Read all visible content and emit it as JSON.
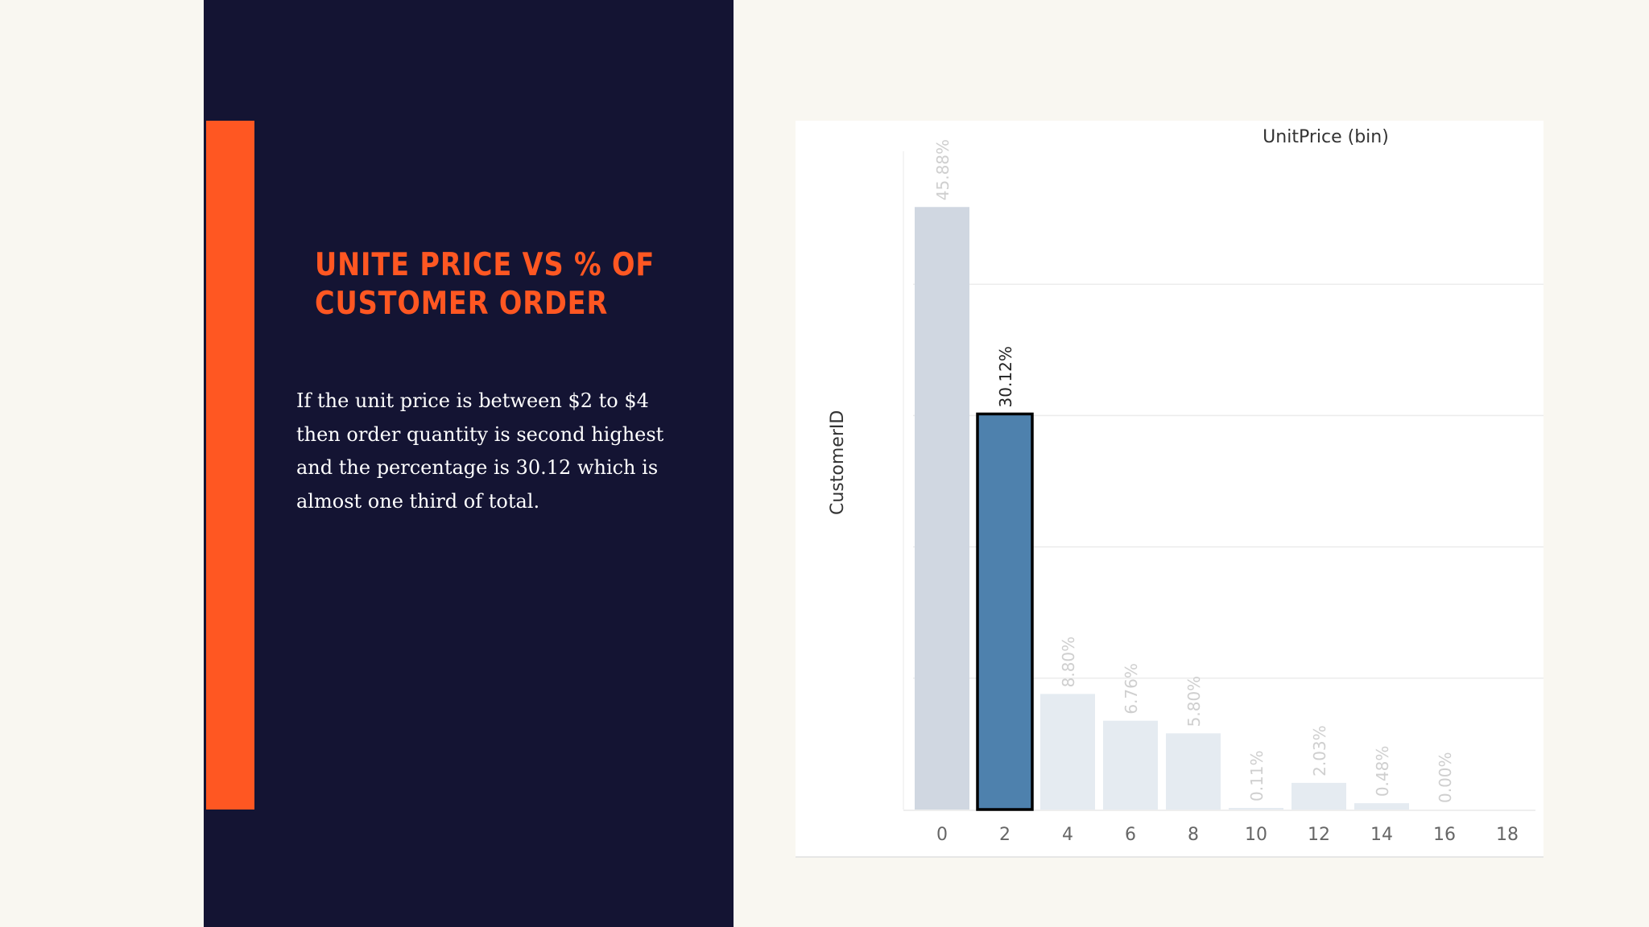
{
  "slide": {
    "title": "UNITE PRICE VS % OF CUSTOMER ORDER",
    "body": "If the unit price is between $2 to $4 then order quantity is second highest and the percentage is 30.12 which is almost one third of total."
  },
  "colors": {
    "dark_panel": "#141433",
    "accent": "#ff5722",
    "bar_default": "#d0d7e1",
    "bar_highlight": "#4e81ad",
    "bar_muted": "#e5ebf1"
  },
  "chart_data": {
    "type": "bar",
    "title": "",
    "xlabel": "UnitPrice (bin)",
    "ylabel": "CustomerID",
    "categories": [
      "0",
      "2",
      "4",
      "6",
      "8",
      "10",
      "12",
      "14",
      "16",
      "18"
    ],
    "values": [
      45.88,
      30.12,
      8.8,
      6.76,
      5.8,
      0.11,
      2.03,
      0.48,
      0.0,
      null
    ],
    "data_labels": [
      "45.88%",
      "30.12%",
      "8.80%",
      "6.76%",
      "5.80%",
      "0.11%",
      "2.03%",
      "0.48%",
      "0.00%",
      ""
    ],
    "highlighted_category": "2",
    "ylim": [
      0,
      50
    ],
    "grid": true,
    "legend": "none"
  }
}
